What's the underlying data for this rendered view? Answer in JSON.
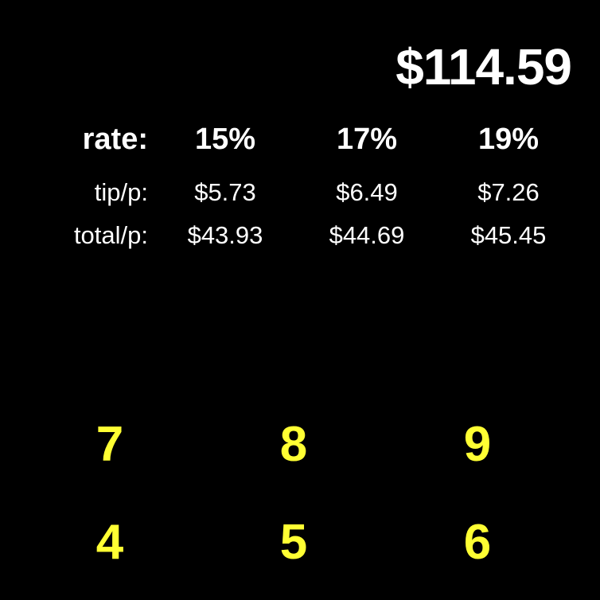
{
  "display": {
    "amount": "$114.59"
  },
  "table": {
    "rate_label": "rate:",
    "tip_label": "tip/p:",
    "total_label": "total/p:",
    "columns": [
      {
        "rate": "15%",
        "tip": "$5.73",
        "total": "$43.93"
      },
      {
        "rate": "17%",
        "tip": "$6.49",
        "total": "$44.69"
      },
      {
        "rate": "19%",
        "tip": "$7.26",
        "total": "$45.45"
      }
    ]
  },
  "keypad": {
    "rows": [
      [
        "7",
        "8",
        "9"
      ],
      [
        "4",
        "5",
        "6"
      ]
    ]
  },
  "colors": {
    "background": "#000000",
    "text": "#ffffff",
    "keypad_digit": "#ffff33"
  }
}
